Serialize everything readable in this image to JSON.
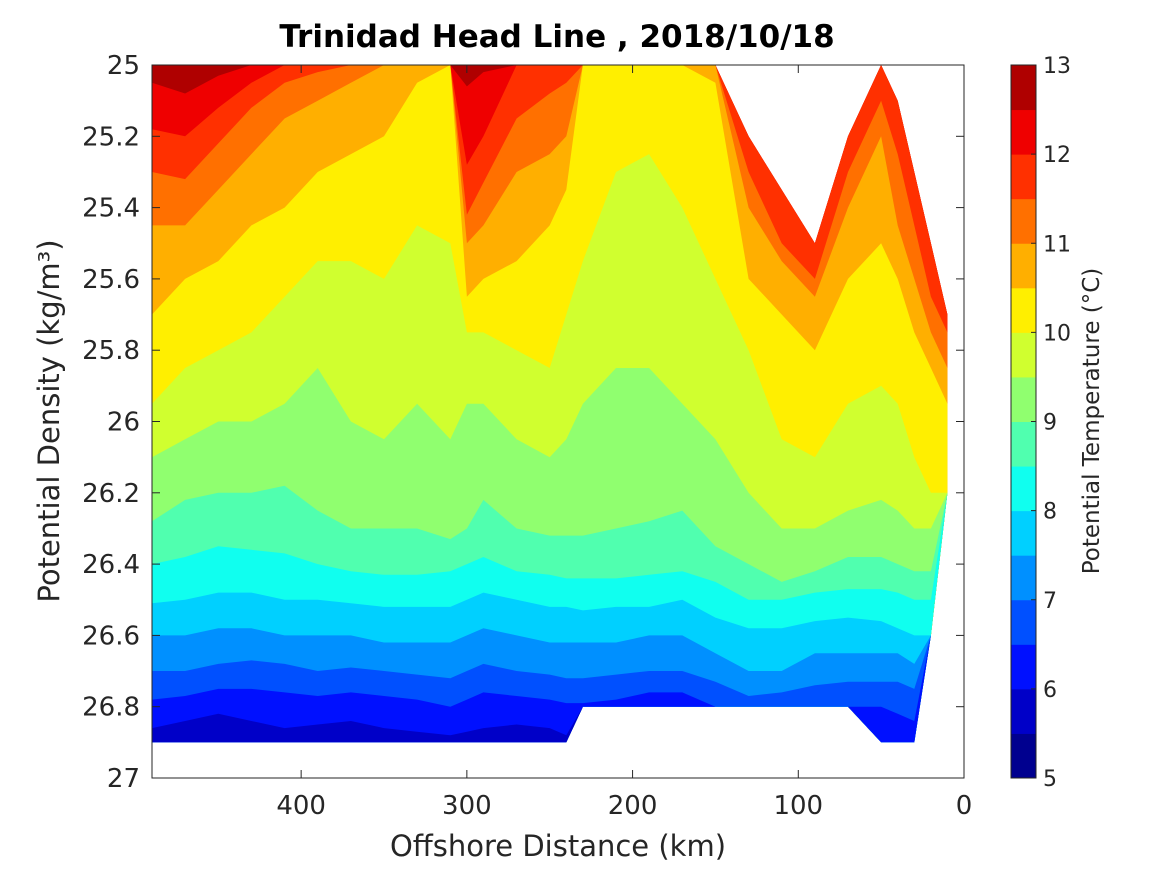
{
  "chart_data": {
    "type": "contourf",
    "title": "Trinidad Head Line , 2018/10/18",
    "xlabel": "Offshore Distance (km)",
    "ylabel": "Potential Density (kg/m³)",
    "xlim": [
      490,
      0
    ],
    "x_reversed": true,
    "ylim": [
      25,
      27
    ],
    "y_reversed": true,
    "xticks": [
      "400",
      "300",
      "200",
      "100",
      "0"
    ],
    "yticks": [
      "25",
      "25.2",
      "25.4",
      "25.6",
      "25.8",
      "26",
      "26.2",
      "26.4",
      "26.6",
      "26.8",
      "27"
    ],
    "grid": false,
    "colorbar": {
      "label": "Potential Temperature (°C)",
      "range": [
        5,
        13
      ],
      "step": 0.5,
      "ticks": [
        "5",
        "6",
        "7",
        "8",
        "9",
        "10",
        "11",
        "12",
        "13"
      ],
      "colors": [
        "#00008f",
        "#0000c8",
        "#0010ff",
        "#0050ff",
        "#0090ff",
        "#00d0ff",
        "#10ffef",
        "#50ffaf",
        "#90ff6f",
        "#d0ff2f",
        "#ffef00",
        "#ffaf00",
        "#ff7000",
        "#ff3000",
        "#ef0000",
        "#af0000"
      ]
    },
    "x": [
      490,
      470,
      450,
      430,
      410,
      390,
      370,
      350,
      330,
      310,
      300,
      290,
      270,
      250,
      240,
      230,
      210,
      190,
      170,
      150,
      130,
      110,
      90,
      70,
      50,
      40,
      30,
      20,
      10
    ],
    "y_top": [
      25.0,
      25.0,
      25.0,
      25.0,
      25.0,
      25.0,
      25.0,
      25.0,
      25.0,
      25.0,
      25.0,
      25.0,
      25.0,
      25.0,
      25.0,
      25.0,
      25.0,
      25.0,
      25.0,
      25.0,
      25.2,
      25.35,
      25.5,
      25.2,
      25.0,
      25.1,
      25.3,
      25.5,
      25.7
    ],
    "y_bottom": [
      26.9,
      26.9,
      26.9,
      26.9,
      26.9,
      26.9,
      26.9,
      26.9,
      26.9,
      26.9,
      26.9,
      26.9,
      26.9,
      26.9,
      26.9,
      26.8,
      26.8,
      26.8,
      26.8,
      26.8,
      26.8,
      26.8,
      26.8,
      26.8,
      26.9,
      26.9,
      26.9,
      26.6,
      26.2
    ],
    "isotherms": {
      "levels": [
        12.5,
        12,
        11.5,
        11,
        10.5,
        10,
        9.5,
        9,
        8.5,
        8,
        7.5,
        7,
        6.5,
        6,
        5.5
      ],
      "depths": [
        [
          25.05,
          25.08,
          25.03,
          25.0,
          25.0,
          25.0,
          25.0,
          25.0,
          25.0,
          25.0,
          25.06,
          25.02,
          25.0,
          25.0,
          25.0,
          25.0,
          25.0,
          25.0,
          25.0,
          25.0,
          25.0,
          25.0,
          25.0,
          25.0,
          25.0,
          25.0,
          25.0,
          25.0,
          25.0
        ],
        [
          25.18,
          25.2,
          25.12,
          25.05,
          25.0,
          25.0,
          25.0,
          25.0,
          25.0,
          25.0,
          25.28,
          25.2,
          25.0,
          25.0,
          25.0,
          25.0,
          25.0,
          25.0,
          25.0,
          25.0,
          25.0,
          25.0,
          25.0,
          25.0,
          25.0,
          25.0,
          25.0,
          25.0,
          25.0
        ],
        [
          25.3,
          25.32,
          25.22,
          25.12,
          25.05,
          25.02,
          25.0,
          25.0,
          25.0,
          25.0,
          25.42,
          25.33,
          25.15,
          25.08,
          25.05,
          25.0,
          25.0,
          25.0,
          25.0,
          25.0,
          25.3,
          25.5,
          25.6,
          25.3,
          25.1,
          25.25,
          25.45,
          25.65,
          25.75
        ],
        [
          25.45,
          25.45,
          25.35,
          25.25,
          25.15,
          25.1,
          25.05,
          25.0,
          25.0,
          25.0,
          25.5,
          25.45,
          25.3,
          25.25,
          25.2,
          25.0,
          25.0,
          25.0,
          25.0,
          25.0,
          25.4,
          25.55,
          25.65,
          25.4,
          25.2,
          25.45,
          25.6,
          25.75,
          25.85
        ],
        [
          25.7,
          25.6,
          25.55,
          25.45,
          25.4,
          25.3,
          25.25,
          25.2,
          25.05,
          25.0,
          25.65,
          25.6,
          25.55,
          25.45,
          25.35,
          25.0,
          25.0,
          25.0,
          25.0,
          25.05,
          25.6,
          25.7,
          25.8,
          25.6,
          25.5,
          25.6,
          25.75,
          25.85,
          25.95
        ],
        [
          25.95,
          25.85,
          25.8,
          25.75,
          25.65,
          25.55,
          25.55,
          25.6,
          25.45,
          25.5,
          25.75,
          25.75,
          25.8,
          25.85,
          25.7,
          25.55,
          25.3,
          25.25,
          25.4,
          25.6,
          25.8,
          26.05,
          26.1,
          25.95,
          25.9,
          25.95,
          26.1,
          26.2,
          26.2
        ],
        [
          26.1,
          26.05,
          26.0,
          26.0,
          25.95,
          25.85,
          26.0,
          26.05,
          25.95,
          26.05,
          25.95,
          25.95,
          26.05,
          26.1,
          26.05,
          25.95,
          25.85,
          25.85,
          25.95,
          26.05,
          26.2,
          26.3,
          26.3,
          26.25,
          26.22,
          26.25,
          26.3,
          26.3,
          26.3
        ],
        [
          26.28,
          26.22,
          26.2,
          26.2,
          26.18,
          26.25,
          26.3,
          26.3,
          26.3,
          26.33,
          26.3,
          26.22,
          26.3,
          26.32,
          26.32,
          26.32,
          26.3,
          26.28,
          26.25,
          26.35,
          26.4,
          26.45,
          26.42,
          26.38,
          26.38,
          26.4,
          26.42,
          26.42,
          26.42
        ],
        [
          26.4,
          26.38,
          26.35,
          26.36,
          26.37,
          26.4,
          26.42,
          26.43,
          26.43,
          26.42,
          26.4,
          26.38,
          26.42,
          26.43,
          26.44,
          26.44,
          26.44,
          26.43,
          26.42,
          26.45,
          26.5,
          26.5,
          26.48,
          26.47,
          26.47,
          26.48,
          26.5,
          26.5,
          26.5
        ],
        [
          26.51,
          26.5,
          26.48,
          26.48,
          26.5,
          26.5,
          26.51,
          26.52,
          26.52,
          26.52,
          26.5,
          26.48,
          26.5,
          26.52,
          26.52,
          26.53,
          26.52,
          26.52,
          26.5,
          26.55,
          26.58,
          26.58,
          26.56,
          26.55,
          26.56,
          26.58,
          26.6,
          26.6,
          26.6
        ],
        [
          26.6,
          26.6,
          26.58,
          26.58,
          26.6,
          26.6,
          26.6,
          26.62,
          26.62,
          26.62,
          26.6,
          26.58,
          26.6,
          26.62,
          26.62,
          26.62,
          26.62,
          26.6,
          26.6,
          26.65,
          26.7,
          26.7,
          26.65,
          26.65,
          26.65,
          26.65,
          26.68,
          26.68,
          26.68
        ],
        [
          26.7,
          26.7,
          26.68,
          26.67,
          26.68,
          26.7,
          26.69,
          26.7,
          26.71,
          26.72,
          26.7,
          26.68,
          26.7,
          26.71,
          26.72,
          26.72,
          26.71,
          26.7,
          26.7,
          26.73,
          26.77,
          26.76,
          26.74,
          26.73,
          26.73,
          26.73,
          26.75,
          26.75,
          26.75
        ],
        [
          26.78,
          26.77,
          26.75,
          26.75,
          26.76,
          26.77,
          26.76,
          26.77,
          26.78,
          26.8,
          26.78,
          26.76,
          26.77,
          26.78,
          26.79,
          26.79,
          26.78,
          26.76,
          26.76,
          26.8,
          26.85,
          26.83,
          26.8,
          26.8,
          26.8,
          26.82,
          26.84,
          26.84,
          26.84
        ],
        [
          26.86,
          26.84,
          26.82,
          26.84,
          26.86,
          26.85,
          26.84,
          26.86,
          26.87,
          26.88,
          26.87,
          26.86,
          26.85,
          26.86,
          26.88,
          26.88,
          26.87,
          26.85,
          26.85,
          26.88,
          26.9,
          26.9,
          26.9,
          26.9,
          26.9,
          26.9,
          26.9,
          26.9,
          26.9
        ],
        [
          26.95,
          26.93,
          26.92,
          26.93,
          26.94,
          26.93,
          26.92,
          26.93,
          26.94,
          26.95,
          26.95,
          26.94,
          26.93,
          26.94,
          26.95,
          26.95,
          26.95,
          26.95,
          26.95,
          26.95,
          26.95,
          26.95,
          26.95,
          26.95,
          26.92,
          26.92,
          26.92,
          26.92,
          26.92
        ]
      ]
    }
  }
}
